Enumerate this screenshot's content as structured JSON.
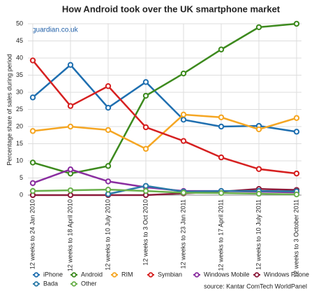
{
  "chart_data": {
    "type": "line",
    "title": "How Android took over the UK smartphone market",
    "subtitle": "guardian.co.uk",
    "y_label": "Percentage share of sales during period",
    "source": "source: Kantar ComTech WorldPanel",
    "categories": [
      "12 weeks to 24 Jan 2010",
      "12 weeks to 18 April 2010",
      "12 weeks to 10 July 2010",
      "12 weeks to 3 Oct 2010",
      "12 weeks to 23 Jan 2011",
      "12 weeks to 17 April 2011",
      "12 weeks to 10 July 2011",
      "12 weeks to 3 October 2011"
    ],
    "series": [
      {
        "name": "iPhone",
        "color": "#1f6fb0",
        "values": [
          28.5,
          38,
          25.5,
          33,
          22,
          20,
          20.2,
          18.5
        ]
      },
      {
        "name": "Android",
        "color": "#3d8a1e",
        "values": [
          9.5,
          6.3,
          8.5,
          29,
          35.5,
          42.5,
          49,
          50
        ]
      },
      {
        "name": "RIM",
        "color": "#f5a623",
        "values": [
          18.7,
          20,
          19,
          13.5,
          23.5,
          22.7,
          19.2,
          22.5
        ]
      },
      {
        "name": "Symbian",
        "color": "#d62020",
        "values": [
          39.3,
          26,
          31.8,
          19.8,
          15.8,
          11,
          7.6,
          6.3
        ]
      },
      {
        "name": "Windows Mobile",
        "color": "#8a2ea0",
        "values": [
          3.5,
          7.5,
          4,
          2.3,
          1.2,
          1.2,
          1,
          0.8
        ]
      },
      {
        "name": "Windows Phone",
        "color": "#8b1a3a",
        "values": [
          0,
          0,
          0,
          0,
          0.5,
          1,
          1.8,
          1.5
        ]
      },
      {
        "name": "Bada",
        "color": "#2a7aa8",
        "values": [
          null,
          null,
          0.3,
          2.7,
          1,
          1.2,
          1.2,
          1.1
        ]
      },
      {
        "name": "Other",
        "color": "#6ab04c",
        "values": [
          1.2,
          1.4,
          1.6,
          1.2,
          0.7,
          0.6,
          0.4,
          0.2
        ]
      }
    ],
    "ylim": [
      0,
      50
    ],
    "yticks": [
      0,
      5,
      10,
      15,
      20,
      25,
      30,
      35,
      40,
      45,
      50
    ],
    "grid": true
  }
}
